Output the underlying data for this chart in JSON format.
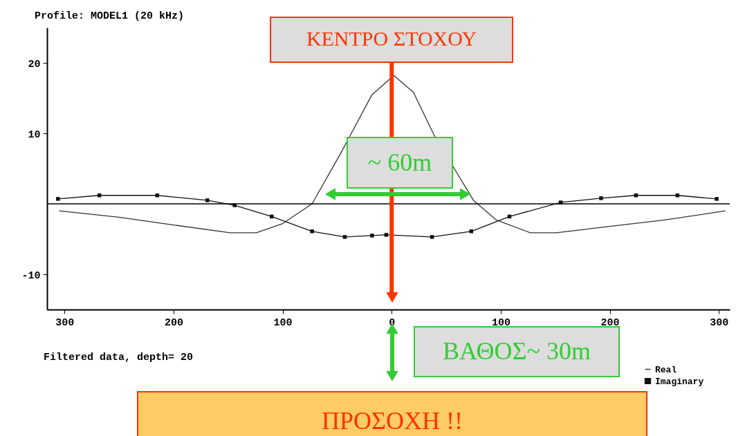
{
  "chart_data": {
    "type": "line",
    "title": "Profile: MODEL1 (20 kHz)",
    "xlim": [
      -316,
      310
    ],
    "ylim": [
      -15,
      25
    ],
    "xticks": [
      {
        "value": -300,
        "label": "300"
      },
      {
        "value": -200,
        "label": "200"
      },
      {
        "value": -100,
        "label": "100"
      },
      0,
      {
        "value": 100,
        "label": "100"
      },
      {
        "value": 200,
        "label": "200"
      },
      {
        "value": 300,
        "label": "300"
      }
    ],
    "yticks": [
      -10,
      10,
      20
    ],
    "grid": false,
    "legend": "bottom right",
    "series": [
      {
        "name": "Real",
        "color": "#333333",
        "marker": "none",
        "x": [
          -305,
          -250,
          -200,
          -148,
          -124,
          -100,
          -73,
          -47,
          -18,
          2,
          20,
          39,
          75,
          96,
          127,
          151,
          200,
          250,
          306
        ],
        "values": [
          -1.0,
          -1.9,
          -3.0,
          -4.1,
          -4.1,
          -2.8,
          0,
          7.1,
          15.5,
          18.2,
          15.8,
          9.7,
          0.5,
          -2.3,
          -4.1,
          -4.1,
          -3.2,
          -2.3,
          -1.0
        ]
      },
      {
        "name": "Imaginary",
        "color": "#111111",
        "marker": "square",
        "x": [
          -306,
          -268,
          -215,
          -169,
          -144,
          -110,
          -73,
          -43,
          -18,
          -5,
          37,
          73,
          108,
          155,
          192,
          224,
          262,
          298
        ],
        "values": [
          0.7,
          1.2,
          1.2,
          0.5,
          -0.2,
          -1.8,
          -3.9,
          -4.7,
          -4.5,
          -4.4,
          -4.7,
          -3.9,
          -1.8,
          0.2,
          0.8,
          1.2,
          1.2,
          0.7
        ]
      }
    ],
    "ref_lines": [
      {
        "axis": "y",
        "value": 0,
        "color": "#000000"
      },
      {
        "axis": "x",
        "value": 0,
        "color": "#ff3300"
      }
    ],
    "annotations": [
      "ΚΕΝΤΡΟ ΣΤΟΧΟΥ",
      "~ 60m",
      "ΒΑΘΟΣ~ 30m",
      "Filtered data, depth= 20",
      "ΠΡΟΣΟΧΗ !!"
    ]
  }
}
